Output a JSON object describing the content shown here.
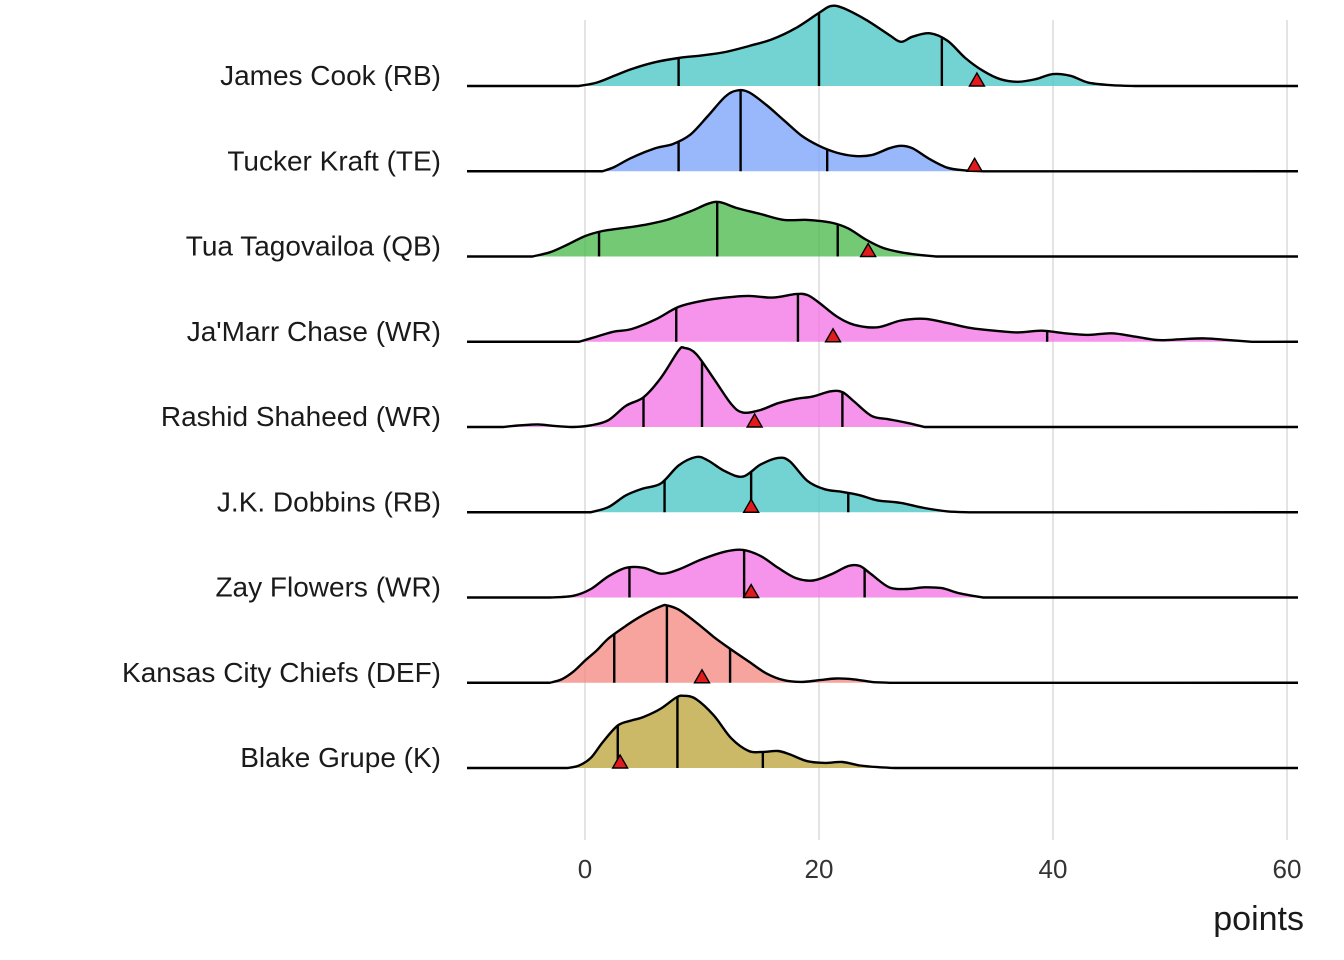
{
  "chart_data": {
    "type": "ridgeline",
    "title": "",
    "xlabel": "points",
    "ylabel": "",
    "xlim": [
      -10,
      61
    ],
    "xticks": [
      0,
      20,
      40,
      60
    ],
    "grid": true,
    "marker_color": "#e31a1c",
    "series": [
      {
        "name": "James Cook (RB)",
        "color": "#4cc6c6",
        "quantiles": [
          8,
          20,
          30.5
        ],
        "marker": 33.5,
        "density": [
          [
            -0.5,
            0
          ],
          [
            1,
            0.04
          ],
          [
            2.5,
            0.12
          ],
          [
            4,
            0.2
          ],
          [
            6,
            0.28
          ],
          [
            8,
            0.33
          ],
          [
            10,
            0.36
          ],
          [
            12,
            0.4
          ],
          [
            14,
            0.47
          ],
          [
            16,
            0.55
          ],
          [
            18,
            0.68
          ],
          [
            20,
            0.86
          ],
          [
            21,
            0.94
          ],
          [
            22,
            0.92
          ],
          [
            24,
            0.78
          ],
          [
            26,
            0.6
          ],
          [
            27,
            0.52
          ],
          [
            28,
            0.58
          ],
          [
            29.5,
            0.62
          ],
          [
            31,
            0.53
          ],
          [
            32.5,
            0.33
          ],
          [
            34,
            0.18
          ],
          [
            35.5,
            0.08
          ],
          [
            37,
            0.05
          ],
          [
            38.5,
            0.08
          ],
          [
            40,
            0.14
          ],
          [
            41.5,
            0.12
          ],
          [
            43,
            0.04
          ],
          [
            45,
            0.01
          ],
          [
            47,
            0
          ]
        ]
      },
      {
        "name": "Tucker Kraft (TE)",
        "color": "#7ca4fb",
        "quantiles": [
          8,
          13.3,
          20.7
        ],
        "marker": 33.3,
        "density": [
          [
            1.5,
            0
          ],
          [
            2.5,
            0.05
          ],
          [
            4,
            0.16
          ],
          [
            6,
            0.27
          ],
          [
            7.5,
            0.32
          ],
          [
            9,
            0.43
          ],
          [
            10.5,
            0.65
          ],
          [
            12,
            0.88
          ],
          [
            13,
            0.95
          ],
          [
            14,
            0.93
          ],
          [
            15.5,
            0.78
          ],
          [
            17,
            0.6
          ],
          [
            18.5,
            0.42
          ],
          [
            20,
            0.3
          ],
          [
            21.5,
            0.22
          ],
          [
            23,
            0.18
          ],
          [
            24.5,
            0.19
          ],
          [
            26,
            0.27
          ],
          [
            27,
            0.3
          ],
          [
            28,
            0.27
          ],
          [
            29.5,
            0.14
          ],
          [
            31,
            0.04
          ],
          [
            32.5,
            0.01
          ],
          [
            34,
            0
          ]
        ]
      },
      {
        "name": "Tua Tagovailoa (QB)",
        "color": "#4dbb4d",
        "quantiles": [
          1.2,
          11.3,
          21.6
        ],
        "marker": 24.2,
        "density": [
          [
            -4.5,
            0
          ],
          [
            -3,
            0.05
          ],
          [
            -1.5,
            0.14
          ],
          [
            0,
            0.24
          ],
          [
            1.5,
            0.3
          ],
          [
            3,
            0.33
          ],
          [
            5,
            0.37
          ],
          [
            7,
            0.43
          ],
          [
            9,
            0.53
          ],
          [
            10.5,
            0.62
          ],
          [
            11.5,
            0.64
          ],
          [
            13,
            0.57
          ],
          [
            15,
            0.5
          ],
          [
            17,
            0.43
          ],
          [
            19,
            0.43
          ],
          [
            21,
            0.4
          ],
          [
            22.5,
            0.33
          ],
          [
            24,
            0.2
          ],
          [
            25.5,
            0.1
          ],
          [
            27,
            0.05
          ],
          [
            28.5,
            0.02
          ],
          [
            30,
            0
          ]
        ]
      },
      {
        "name": "Ja'Marr Chase (WR)",
        "color": "#f475e6",
        "quantiles": [
          7.8,
          18.2,
          39.5
        ],
        "marker": 21.2,
        "density": [
          [
            -0.5,
            0
          ],
          [
            1,
            0.06
          ],
          [
            2.5,
            0.12
          ],
          [
            4,
            0.15
          ],
          [
            6,
            0.26
          ],
          [
            8,
            0.41
          ],
          [
            10,
            0.48
          ],
          [
            12,
            0.52
          ],
          [
            14,
            0.54
          ],
          [
            16,
            0.52
          ],
          [
            18,
            0.56
          ],
          [
            19,
            0.55
          ],
          [
            20,
            0.46
          ],
          [
            21.5,
            0.3
          ],
          [
            23,
            0.2
          ],
          [
            25,
            0.17
          ],
          [
            27,
            0.25
          ],
          [
            29,
            0.27
          ],
          [
            31,
            0.22
          ],
          [
            33,
            0.16
          ],
          [
            35,
            0.13
          ],
          [
            37,
            0.11
          ],
          [
            39,
            0.13
          ],
          [
            41,
            0.1
          ],
          [
            43,
            0.08
          ],
          [
            45,
            0.1
          ],
          [
            47,
            0.06
          ],
          [
            49,
            0.02
          ],
          [
            51,
            0.03
          ],
          [
            53,
            0.04
          ],
          [
            55,
            0.02
          ],
          [
            57,
            0
          ]
        ]
      },
      {
        "name": "Rashid Shaheed (WR)",
        "color": "#f475e6",
        "quantiles": [
          5,
          10,
          22
        ],
        "marker": 14.5,
        "density": [
          [
            -7,
            0
          ],
          [
            -5.5,
            0.02
          ],
          [
            -4,
            0.03
          ],
          [
            -2.5,
            0.01
          ],
          [
            -1,
            0
          ],
          [
            0.5,
            0.02
          ],
          [
            2,
            0.08
          ],
          [
            3.5,
            0.25
          ],
          [
            5,
            0.35
          ],
          [
            6.5,
            0.58
          ],
          [
            8,
            0.9
          ],
          [
            8.5,
            0.93
          ],
          [
            9.5,
            0.86
          ],
          [
            11,
            0.57
          ],
          [
            12.5,
            0.27
          ],
          [
            13.5,
            0.17
          ],
          [
            15,
            0.2
          ],
          [
            16.5,
            0.28
          ],
          [
            18,
            0.33
          ],
          [
            19.5,
            0.36
          ],
          [
            21,
            0.42
          ],
          [
            22,
            0.41
          ],
          [
            23,
            0.3
          ],
          [
            24.5,
            0.13
          ],
          [
            26,
            0.09
          ],
          [
            27.5,
            0.05
          ],
          [
            29,
            0
          ]
        ]
      },
      {
        "name": "J.K. Dobbins (RB)",
        "color": "#4cc6c6",
        "quantiles": [
          6.8,
          14.2,
          22.5
        ],
        "marker": 14.2,
        "density": [
          [
            0.5,
            0
          ],
          [
            2,
            0.06
          ],
          [
            3.5,
            0.2
          ],
          [
            5,
            0.28
          ],
          [
            6.5,
            0.34
          ],
          [
            8,
            0.55
          ],
          [
            9.5,
            0.65
          ],
          [
            10.5,
            0.61
          ],
          [
            12,
            0.48
          ],
          [
            13.5,
            0.42
          ],
          [
            15,
            0.56
          ],
          [
            16.5,
            0.64
          ],
          [
            17.5,
            0.6
          ],
          [
            19,
            0.37
          ],
          [
            20.5,
            0.27
          ],
          [
            22,
            0.24
          ],
          [
            23.5,
            0.2
          ],
          [
            25,
            0.14
          ],
          [
            27,
            0.11
          ],
          [
            29,
            0.05
          ],
          [
            31,
            0.01
          ],
          [
            33,
            0
          ]
        ]
      },
      {
        "name": "Zay Flowers (WR)",
        "color": "#f475e6",
        "quantiles": [
          3.8,
          13.6,
          23.9
        ],
        "marker": 14.2,
        "density": [
          [
            -3,
            0
          ],
          [
            -1,
            0.02
          ],
          [
            0.5,
            0.1
          ],
          [
            2,
            0.25
          ],
          [
            3.5,
            0.35
          ],
          [
            5,
            0.35
          ],
          [
            6.5,
            0.28
          ],
          [
            8,
            0.33
          ],
          [
            10,
            0.45
          ],
          [
            12,
            0.54
          ],
          [
            13.5,
            0.56
          ],
          [
            15,
            0.49
          ],
          [
            16.5,
            0.35
          ],
          [
            18,
            0.23
          ],
          [
            19.5,
            0.2
          ],
          [
            21,
            0.27
          ],
          [
            22.5,
            0.37
          ],
          [
            23.5,
            0.37
          ],
          [
            24.5,
            0.27
          ],
          [
            26,
            0.12
          ],
          [
            27.5,
            0.1
          ],
          [
            29,
            0.12
          ],
          [
            30.5,
            0.11
          ],
          [
            32,
            0.05
          ],
          [
            34,
            0
          ]
        ]
      },
      {
        "name": "Kansas City Chiefs (DEF)",
        "color": "#f48a82",
        "quantiles": [
          2.5,
          7,
          12.4
        ],
        "marker": 10,
        "density": [
          [
            -3,
            0
          ],
          [
            -2,
            0.04
          ],
          [
            -1,
            0.13
          ],
          [
            0,
            0.26
          ],
          [
            1,
            0.38
          ],
          [
            2,
            0.52
          ],
          [
            3.5,
            0.67
          ],
          [
            5,
            0.8
          ],
          [
            6.5,
            0.9
          ],
          [
            7,
            0.91
          ],
          [
            8,
            0.86
          ],
          [
            9.5,
            0.71
          ],
          [
            11,
            0.54
          ],
          [
            12.5,
            0.39
          ],
          [
            14,
            0.25
          ],
          [
            15.5,
            0.11
          ],
          [
            17,
            0.03
          ],
          [
            18.5,
            0.01
          ],
          [
            20,
            0.03
          ],
          [
            21.5,
            0.05
          ],
          [
            23,
            0.04
          ],
          [
            24.5,
            0.01
          ],
          [
            26,
            0
          ]
        ]
      },
      {
        "name": "Blake Grupe (K)",
        "color": "#bca53e",
        "quantiles": [
          2.8,
          7.9,
          15.2
        ],
        "marker": 3,
        "density": [
          [
            -1.5,
            0
          ],
          [
            -0.5,
            0.03
          ],
          [
            0.5,
            0.12
          ],
          [
            1.5,
            0.3
          ],
          [
            2.8,
            0.5
          ],
          [
            4,
            0.56
          ],
          [
            5,
            0.6
          ],
          [
            6.5,
            0.7
          ],
          [
            7.8,
            0.83
          ],
          [
            8.5,
            0.85
          ],
          [
            9.5,
            0.81
          ],
          [
            11,
            0.62
          ],
          [
            12.5,
            0.35
          ],
          [
            14,
            0.2
          ],
          [
            15.2,
            0.19
          ],
          [
            16.5,
            0.2
          ],
          [
            17.5,
            0.16
          ],
          [
            19,
            0.08
          ],
          [
            20.5,
            0.06
          ],
          [
            22,
            0.07
          ],
          [
            23.5,
            0.03
          ],
          [
            25,
            0.01
          ],
          [
            26.5,
            0
          ]
        ]
      }
    ]
  }
}
